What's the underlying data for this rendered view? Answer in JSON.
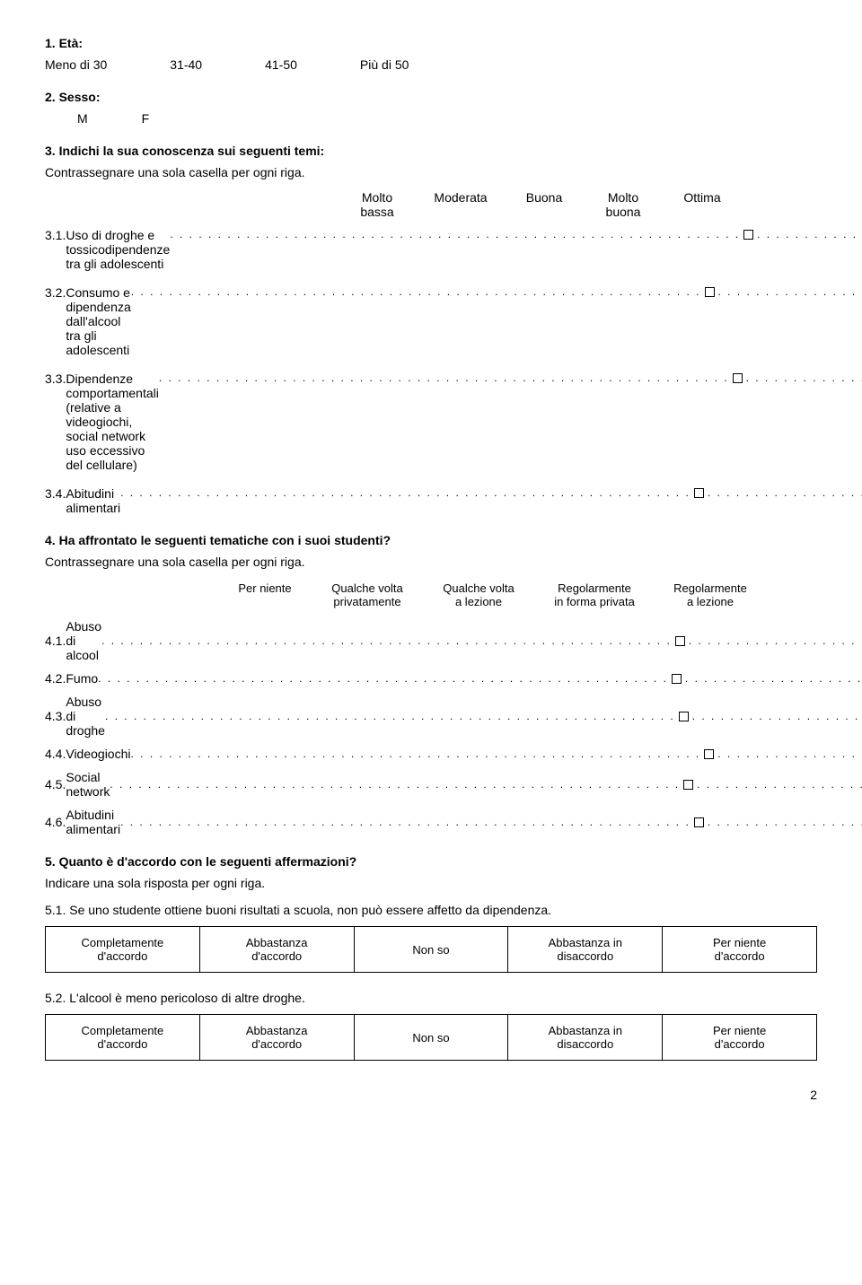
{
  "q1": {
    "number": "1.",
    "title": "Età:",
    "options": [
      "Meno di 30",
      "31-40",
      "41-50",
      "Più di 50"
    ]
  },
  "q2": {
    "number": "2.",
    "title": "Sesso:",
    "options": [
      "M",
      "F"
    ]
  },
  "q3": {
    "number": "3.",
    "title": "Indichi la sua conoscenza sui seguenti temi:",
    "instruction": "Contrassegnare una sola casella per ogni riga.",
    "headers": [
      "Molto\nbassa",
      "Moderata",
      "Buona",
      "Molto\nbuona",
      "Ottima"
    ],
    "items": [
      {
        "num": "3.1.",
        "label": "Uso di droghe e tossicodipendenze\ntra gli adolescenti"
      },
      {
        "num": "3.2.",
        "label": "Consumo e dipendenza dall'alcool\ntra gli adolescenti"
      },
      {
        "num": "3.3.",
        "label": "Dipendenze comportamentali\n(relative a videogiochi, social network\nuso eccessivo del cellulare)"
      },
      {
        "num": "3.4.",
        "label": "Abitudini alimentari"
      }
    ]
  },
  "q4": {
    "number": "4.",
    "title": "Ha affrontato le seguenti tematiche con i suoi studenti?",
    "instruction": "Contrassegnare una sola casella per ogni riga.",
    "headers": [
      "Per niente",
      "Qualche volta\nprivatamente",
      "Qualche volta\na lezione",
      "Regolarmente\nin forma privata",
      "Regolarmente\na lezione"
    ],
    "items": [
      {
        "num": "4.1.",
        "label": "Abuso di alcool"
      },
      {
        "num": "4.2.",
        "label": "Fumo"
      },
      {
        "num": "4.3.",
        "label": "Abuso di droghe"
      },
      {
        "num": "4.4.",
        "label": "Videogiochi"
      },
      {
        "num": "4.5.",
        "label": "Social network"
      },
      {
        "num": "4.6.",
        "label": "Abitudini alimentari"
      }
    ]
  },
  "q5": {
    "number": "5.",
    "title": "Quanto è d'accordo con le seguenti affermazioni?",
    "instruction": "Indicare una sola risposta per ogni riga.",
    "likert": [
      "Completamente\nd'accordo",
      "Abbastanza\nd'accordo",
      "Non so",
      "Abbastanza in\ndisaccordo",
      "Per niente\nd'accordo"
    ],
    "items": [
      {
        "num": "5.1.",
        "label": "Se uno studente ottiene buoni risultati a scuola, non può essere affetto da dipendenza."
      },
      {
        "num": "5.2.",
        "label": "L'alcool è meno pericoloso di altre droghe."
      }
    ]
  },
  "page_number": "2",
  "colors": {
    "text": "#000000",
    "background": "#ffffff",
    "border": "#000000"
  },
  "dot_fill": ". . . . . . . . . . . . . . . . . . . . . . . . . . . . . . . . . . . . . . . . . . . . . . . . . . . . . . . . . . . ."
}
